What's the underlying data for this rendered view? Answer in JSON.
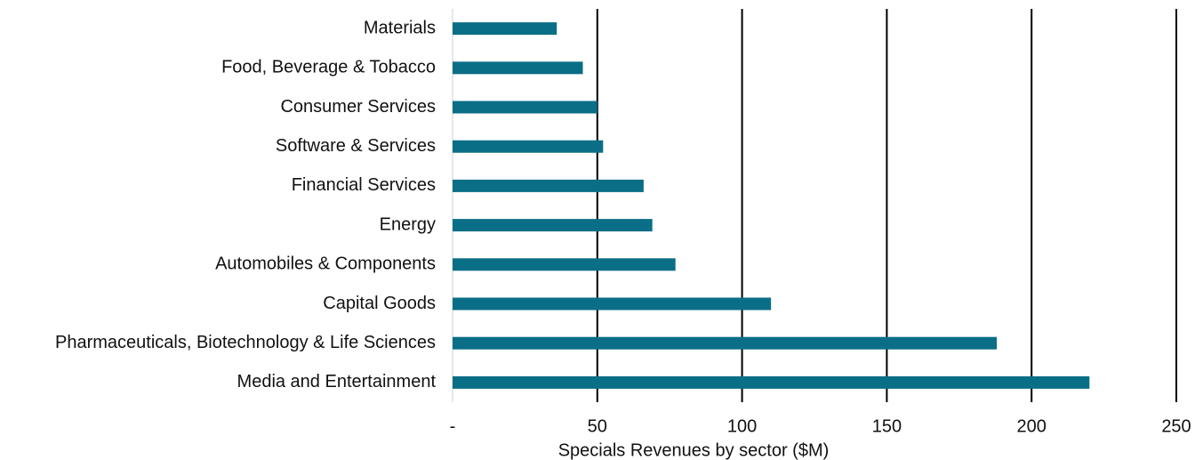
{
  "chart_data": {
    "type": "bar",
    "orientation": "horizontal",
    "x_label": "Specials Revenues by sector ($M)",
    "categories": [
      "Materials",
      "Food, Beverage & Tobacco",
      "Consumer Services",
      "Software & Services",
      "Financial Services",
      "Energy",
      "Automobiles & Components",
      "Capital Goods",
      "Pharmaceuticals, Biotechnology & Life Sciences",
      "Media and Entertainment"
    ],
    "values": [
      36,
      45,
      50,
      52,
      66,
      69,
      77,
      110,
      188,
      220
    ],
    "color": "#0a6e87",
    "xlim": [
      0,
      250
    ],
    "xticks": [
      {
        "value": 0,
        "label": "-"
      },
      50,
      100,
      150,
      200,
      250
    ],
    "grid": true
  }
}
